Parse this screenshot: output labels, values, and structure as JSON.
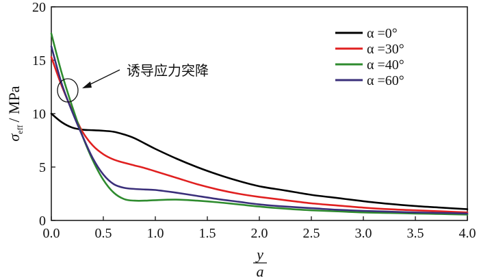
{
  "chart_data": {
    "type": "line",
    "title": "",
    "xlabel_num": "y",
    "xlabel_den": "a",
    "ylabel_symbol": "σ",
    "ylabel_sub": "eff",
    "ylabel_unit": "/ MPa",
    "xlim": [
      0.0,
      4.0
    ],
    "ylim": [
      0,
      20
    ],
    "xticks": [
      "0.0",
      "0.5",
      "1.0",
      "1.5",
      "2.0",
      "2.5",
      "3.0",
      "3.5",
      "4.0"
    ],
    "yticks": [
      "0",
      "5",
      "10",
      "15",
      "20"
    ],
    "grid": false,
    "legend_position": "top-right",
    "annotation": "诱导应力突降",
    "series": [
      {
        "name": "α =0°",
        "color": "#000000",
        "x": [
          0.0,
          0.1,
          0.2,
          0.3,
          0.4,
          0.5,
          0.6,
          0.7,
          0.8,
          0.9,
          1.0,
          1.2,
          1.4,
          1.6,
          1.8,
          2.0,
          2.25,
          2.5,
          2.75,
          3.0,
          3.25,
          3.5,
          3.75,
          4.0
        ],
        "y": [
          10.0,
          9.2,
          8.7,
          8.5,
          8.45,
          8.4,
          8.3,
          8.05,
          7.7,
          7.2,
          6.7,
          5.8,
          5.0,
          4.3,
          3.7,
          3.2,
          2.8,
          2.4,
          2.1,
          1.8,
          1.55,
          1.35,
          1.2,
          1.05
        ]
      },
      {
        "name": "α =30°",
        "color": "#e02020",
        "x": [
          0.0,
          0.1,
          0.2,
          0.3,
          0.4,
          0.5,
          0.6,
          0.7,
          0.8,
          0.9,
          1.0,
          1.2,
          1.4,
          1.6,
          1.8,
          2.0,
          2.25,
          2.5,
          2.75,
          3.0,
          3.25,
          3.5,
          3.75,
          4.0
        ],
        "y": [
          15.3,
          12.6,
          10.3,
          8.3,
          7.0,
          6.2,
          5.7,
          5.4,
          5.15,
          4.9,
          4.6,
          4.0,
          3.4,
          2.9,
          2.5,
          2.2,
          1.9,
          1.6,
          1.4,
          1.2,
          1.05,
          0.95,
          0.85,
          0.75
        ]
      },
      {
        "name": "α =40°",
        "color": "#2e8b2e",
        "x": [
          0.0,
          0.1,
          0.2,
          0.3,
          0.4,
          0.5,
          0.6,
          0.7,
          0.8,
          0.9,
          1.0,
          1.2,
          1.4,
          1.6,
          1.8,
          2.0,
          2.25,
          2.5,
          2.75,
          3.0,
          3.25,
          3.5,
          3.75,
          4.0
        ],
        "y": [
          17.5,
          13.8,
          10.7,
          7.9,
          5.6,
          3.8,
          2.6,
          2.0,
          1.85,
          1.85,
          1.9,
          1.95,
          1.85,
          1.7,
          1.5,
          1.3,
          1.1,
          0.95,
          0.85,
          0.75,
          0.7,
          0.65,
          0.6,
          0.55
        ]
      },
      {
        "name": "α =60°",
        "color": "#3a2f7a",
        "x": [
          0.0,
          0.1,
          0.2,
          0.3,
          0.4,
          0.5,
          0.6,
          0.7,
          0.8,
          0.9,
          1.0,
          1.2,
          1.4,
          1.6,
          1.8,
          2.0,
          2.25,
          2.5,
          2.75,
          3.0,
          3.25,
          3.5,
          3.75,
          4.0
        ],
        "y": [
          16.3,
          12.8,
          10.2,
          7.9,
          5.8,
          4.3,
          3.4,
          3.05,
          2.95,
          2.9,
          2.85,
          2.6,
          2.3,
          2.0,
          1.75,
          1.5,
          1.3,
          1.15,
          1.0,
          0.9,
          0.82,
          0.75,
          0.7,
          0.65
        ]
      }
    ]
  }
}
